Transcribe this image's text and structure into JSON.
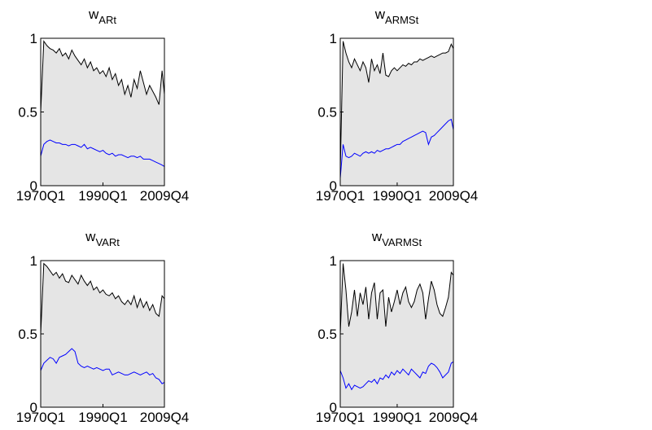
{
  "chart_data": [
    {
      "type": "line",
      "title": {
        "main": "w",
        "sub": "ARt"
      },
      "x": [
        "1970Q1",
        "1971Q1",
        "1972Q1",
        "1973Q1",
        "1974Q1",
        "1975Q1",
        "1976Q1",
        "1977Q1",
        "1978Q1",
        "1979Q1",
        "1980Q1",
        "1981Q1",
        "1982Q1",
        "1983Q1",
        "1984Q1",
        "1985Q1",
        "1986Q1",
        "1987Q1",
        "1988Q1",
        "1989Q1",
        "1990Q1",
        "1991Q1",
        "1992Q1",
        "1993Q1",
        "1994Q1",
        "1995Q1",
        "1996Q1",
        "1997Q1",
        "1998Q1",
        "1999Q1",
        "2000Q1",
        "2001Q1",
        "2002Q1",
        "2003Q1",
        "2004Q1",
        "2005Q1",
        "2006Q1",
        "2007Q1",
        "2008Q1",
        "2009Q1",
        "2009Q4"
      ],
      "xlim": [
        "1970Q1",
        "2009Q4"
      ],
      "xticks": [
        "1970Q1",
        "1990Q1",
        "2009Q4"
      ],
      "ylim": [
        0,
        1
      ],
      "yticks": [
        0,
        0.5,
        1
      ],
      "series": [
        {
          "color": "#000000",
          "fill": "#e5e5e5",
          "values": [
            0.5,
            0.98,
            0.95,
            0.93,
            0.92,
            0.9,
            0.93,
            0.88,
            0.9,
            0.86,
            0.92,
            0.88,
            0.85,
            0.82,
            0.86,
            0.8,
            0.84,
            0.78,
            0.8,
            0.76,
            0.78,
            0.74,
            0.8,
            0.72,
            0.76,
            0.68,
            0.72,
            0.62,
            0.68,
            0.6,
            0.72,
            0.66,
            0.78,
            0.7,
            0.62,
            0.68,
            0.64,
            0.6,
            0.55,
            0.78,
            0.62
          ]
        },
        {
          "color": "#0000ff",
          "values": [
            0.2,
            0.28,
            0.3,
            0.31,
            0.3,
            0.29,
            0.29,
            0.28,
            0.28,
            0.27,
            0.28,
            0.28,
            0.27,
            0.26,
            0.28,
            0.25,
            0.26,
            0.25,
            0.24,
            0.23,
            0.24,
            0.22,
            0.21,
            0.22,
            0.2,
            0.21,
            0.21,
            0.2,
            0.19,
            0.2,
            0.2,
            0.19,
            0.2,
            0.18,
            0.18,
            0.18,
            0.17,
            0.16,
            0.15,
            0.14,
            0.13
          ]
        }
      ]
    },
    {
      "type": "line",
      "title": {
        "main": "w",
        "sub": "ARMSt"
      },
      "x": [
        "1970Q1",
        "1971Q1",
        "1972Q1",
        "1973Q1",
        "1974Q1",
        "1975Q1",
        "1976Q1",
        "1977Q1",
        "1978Q1",
        "1979Q1",
        "1980Q1",
        "1981Q1",
        "1982Q1",
        "1983Q1",
        "1984Q1",
        "1985Q1",
        "1986Q1",
        "1987Q1",
        "1988Q1",
        "1989Q1",
        "1990Q1",
        "1991Q1",
        "1992Q1",
        "1993Q1",
        "1994Q1",
        "1995Q1",
        "1996Q1",
        "1997Q1",
        "1998Q1",
        "1999Q1",
        "2000Q1",
        "2001Q1",
        "2002Q1",
        "2003Q1",
        "2004Q1",
        "2005Q1",
        "2006Q1",
        "2007Q1",
        "2008Q1",
        "2009Q1",
        "2009Q4"
      ],
      "xlim": [
        "1970Q1",
        "2009Q4"
      ],
      "xticks": [
        "1970Q1",
        "1990Q1",
        "2009Q4"
      ],
      "ylim": [
        0,
        1
      ],
      "yticks": [
        0,
        0.5,
        1
      ],
      "series": [
        {
          "color": "#000000",
          "fill": "#e5e5e5",
          "values": [
            0.1,
            0.98,
            0.9,
            0.84,
            0.8,
            0.86,
            0.82,
            0.78,
            0.84,
            0.8,
            0.7,
            0.86,
            0.78,
            0.82,
            0.76,
            0.9,
            0.75,
            0.74,
            0.78,
            0.8,
            0.78,
            0.8,
            0.82,
            0.81,
            0.83,
            0.82,
            0.84,
            0.84,
            0.86,
            0.85,
            0.86,
            0.87,
            0.88,
            0.87,
            0.88,
            0.89,
            0.9,
            0.9,
            0.91,
            0.96,
            0.93
          ]
        },
        {
          "color": "#0000ff",
          "values": [
            0.05,
            0.28,
            0.2,
            0.19,
            0.2,
            0.22,
            0.21,
            0.2,
            0.22,
            0.23,
            0.22,
            0.23,
            0.22,
            0.24,
            0.23,
            0.24,
            0.25,
            0.25,
            0.26,
            0.27,
            0.28,
            0.28,
            0.3,
            0.31,
            0.32,
            0.33,
            0.34,
            0.35,
            0.36,
            0.37,
            0.36,
            0.28,
            0.33,
            0.34,
            0.36,
            0.38,
            0.4,
            0.42,
            0.44,
            0.45,
            0.38
          ]
        }
      ]
    },
    {
      "type": "line",
      "title": {
        "main": "w",
        "sub": "VARt"
      },
      "x": [
        "1970Q1",
        "1971Q1",
        "1972Q1",
        "1973Q1",
        "1974Q1",
        "1975Q1",
        "1976Q1",
        "1977Q1",
        "1978Q1",
        "1979Q1",
        "1980Q1",
        "1981Q1",
        "1982Q1",
        "1983Q1",
        "1984Q1",
        "1985Q1",
        "1986Q1",
        "1987Q1",
        "1988Q1",
        "1989Q1",
        "1990Q1",
        "1991Q1",
        "1992Q1",
        "1993Q1",
        "1994Q1",
        "1995Q1",
        "1996Q1",
        "1997Q1",
        "1998Q1",
        "1999Q1",
        "2000Q1",
        "2001Q1",
        "2002Q1",
        "2003Q1",
        "2004Q1",
        "2005Q1",
        "2006Q1",
        "2007Q1",
        "2008Q1",
        "2009Q1",
        "2009Q4"
      ],
      "xlim": [
        "1970Q1",
        "2009Q4"
      ],
      "xticks": [
        "1970Q1",
        "1990Q1",
        "2009Q4"
      ],
      "ylim": [
        0,
        1
      ],
      "yticks": [
        0,
        0.5,
        1
      ],
      "series": [
        {
          "color": "#000000",
          "fill": "#e5e5e5",
          "values": [
            0.5,
            0.98,
            0.96,
            0.93,
            0.9,
            0.92,
            0.88,
            0.91,
            0.86,
            0.85,
            0.9,
            0.87,
            0.84,
            0.9,
            0.86,
            0.83,
            0.86,
            0.8,
            0.82,
            0.78,
            0.8,
            0.77,
            0.76,
            0.78,
            0.74,
            0.76,
            0.72,
            0.7,
            0.73,
            0.7,
            0.76,
            0.68,
            0.74,
            0.68,
            0.72,
            0.66,
            0.7,
            0.64,
            0.62,
            0.76,
            0.74
          ]
        },
        {
          "color": "#0000ff",
          "values": [
            0.25,
            0.3,
            0.32,
            0.34,
            0.33,
            0.3,
            0.34,
            0.35,
            0.36,
            0.38,
            0.4,
            0.38,
            0.3,
            0.28,
            0.27,
            0.28,
            0.27,
            0.26,
            0.27,
            0.26,
            0.25,
            0.26,
            0.26,
            0.22,
            0.23,
            0.24,
            0.23,
            0.22,
            0.22,
            0.23,
            0.24,
            0.23,
            0.22,
            0.23,
            0.24,
            0.22,
            0.23,
            0.2,
            0.19,
            0.16,
            0.17
          ]
        }
      ]
    },
    {
      "type": "line",
      "title": {
        "main": "w",
        "sub": "VARMSt"
      },
      "x": [
        "1970Q1",
        "1971Q1",
        "1972Q1",
        "1973Q1",
        "1974Q1",
        "1975Q1",
        "1976Q1",
        "1977Q1",
        "1978Q1",
        "1979Q1",
        "1980Q1",
        "1981Q1",
        "1982Q1",
        "1983Q1",
        "1984Q1",
        "1985Q1",
        "1986Q1",
        "1987Q1",
        "1988Q1",
        "1989Q1",
        "1990Q1",
        "1991Q1",
        "1992Q1",
        "1993Q1",
        "1994Q1",
        "1995Q1",
        "1996Q1",
        "1997Q1",
        "1998Q1",
        "1999Q1",
        "2000Q1",
        "2001Q1",
        "2002Q1",
        "2003Q1",
        "2004Q1",
        "2005Q1",
        "2006Q1",
        "2007Q1",
        "2008Q1",
        "2009Q1",
        "2009Q4"
      ],
      "xlim": [
        "1970Q1",
        "2009Q4"
      ],
      "xticks": [
        "1970Q1",
        "1990Q1",
        "2009Q4"
      ],
      "ylim": [
        0,
        1
      ],
      "yticks": [
        0,
        0.5,
        1
      ],
      "series": [
        {
          "color": "#000000",
          "fill": "#e5e5e5",
          "values": [
            0.5,
            0.98,
            0.8,
            0.55,
            0.65,
            0.8,
            0.62,
            0.78,
            0.7,
            0.82,
            0.6,
            0.78,
            0.85,
            0.6,
            0.78,
            0.8,
            0.55,
            0.75,
            0.65,
            0.72,
            0.8,
            0.7,
            0.78,
            0.82,
            0.72,
            0.68,
            0.72,
            0.8,
            0.84,
            0.78,
            0.6,
            0.74,
            0.86,
            0.8,
            0.7,
            0.64,
            0.62,
            0.68,
            0.75,
            0.92,
            0.9
          ]
        },
        {
          "color": "#0000ff",
          "values": [
            0.25,
            0.2,
            0.13,
            0.16,
            0.12,
            0.15,
            0.14,
            0.13,
            0.14,
            0.16,
            0.18,
            0.17,
            0.19,
            0.16,
            0.2,
            0.19,
            0.22,
            0.2,
            0.24,
            0.22,
            0.25,
            0.23,
            0.26,
            0.24,
            0.22,
            0.26,
            0.24,
            0.22,
            0.2,
            0.24,
            0.23,
            0.28,
            0.3,
            0.29,
            0.27,
            0.24,
            0.2,
            0.22,
            0.24,
            0.3,
            0.31
          ]
        }
      ]
    }
  ]
}
